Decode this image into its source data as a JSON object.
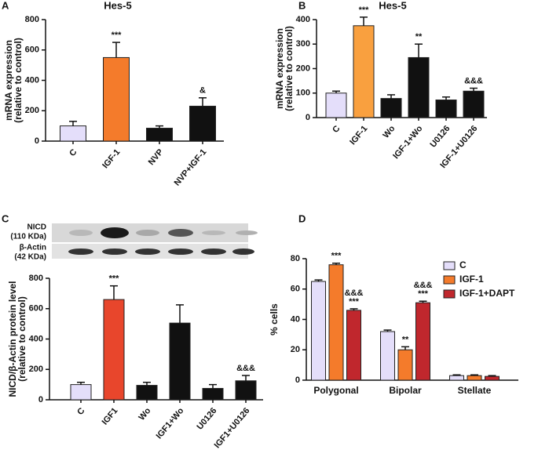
{
  "chart_data": [
    {
      "type": "bar",
      "panel": "A",
      "title": "Hes-5",
      "ylabel": [
        "mRNA expression",
        "(relative to control)"
      ],
      "categories": [
        "C",
        "IGF-1",
        "NVP",
        "NVP+IGF-1"
      ],
      "values": [
        100,
        550,
        85,
        230
      ],
      "errors": [
        30,
        100,
        15,
        55
      ],
      "annotations": [
        null,
        "***",
        null,
        "&"
      ],
      "colors": [
        "#e4defa",
        "#f47b2b",
        "#111111",
        "#111111"
      ],
      "ylim": [
        0,
        800
      ],
      "yticks": [
        0,
        200,
        400,
        600,
        800
      ]
    },
    {
      "type": "bar",
      "panel": "B",
      "title": "Hes-5",
      "ylabel": [
        "mRNA expression",
        "(relative to control)"
      ],
      "categories": [
        "C",
        "IGF-1",
        "Wo",
        "IGF-1+Wo",
        "U0126",
        "IGF-1+U0126"
      ],
      "values": [
        100,
        375,
        78,
        245,
        72,
        108
      ],
      "errors": [
        8,
        35,
        15,
        55,
        12,
        12
      ],
      "annotations": [
        null,
        "***",
        null,
        "**",
        null,
        "&&&"
      ],
      "colors": [
        "#e4defa",
        "#f9a03f",
        "#111111",
        "#111111",
        "#111111",
        "#111111"
      ],
      "ylim": [
        0,
        400
      ],
      "yticks": [
        0,
        100,
        200,
        300,
        400
      ]
    },
    {
      "type": "bar",
      "panel": "C",
      "blot_labels": [
        "NICD",
        "(110 KDa)",
        "β-Actin",
        "(42 KDa)"
      ],
      "ylabel": [
        "NICD/β-Actin protein level",
        "(relative to control)"
      ],
      "categories": [
        "C",
        "IGF1",
        "Wo",
        "IGF1+Wo",
        "U0126",
        "IGF1+U0126"
      ],
      "values": [
        100,
        660,
        95,
        505,
        75,
        125
      ],
      "errors": [
        15,
        90,
        20,
        120,
        25,
        35
      ],
      "annotations": [
        null,
        "***",
        null,
        null,
        null,
        "&&&"
      ],
      "colors": [
        "#e4defa",
        "#e8462c",
        "#111111",
        "#111111",
        "#111111",
        "#111111"
      ],
      "ylim": [
        0,
        800
      ],
      "yticks": [
        0,
        200,
        400,
        600,
        800
      ]
    },
    {
      "type": "grouped_bar",
      "panel": "D",
      "ylabel": [
        "% cells"
      ],
      "categories": [
        "Polygonal",
        "Bipolar",
        "Stellate"
      ],
      "series": [
        {
          "name": "C",
          "color": "#e4defa",
          "values": [
            65,
            32,
            3
          ],
          "errors": [
            1,
            1,
            0.5
          ],
          "annotations": [
            null,
            null,
            null
          ]
        },
        {
          "name": "IGF-1",
          "color": "#f47b2b",
          "values": [
            76,
            20,
            3
          ],
          "errors": [
            1,
            2,
            0.5
          ],
          "annotations": [
            [
              "***"
            ],
            [
              "**"
            ],
            null
          ]
        },
        {
          "name": "IGF-1+DAPT",
          "color": "#c0272d",
          "values": [
            46,
            51,
            2.5
          ],
          "errors": [
            1,
            1,
            0.5
          ],
          "annotations": [
            [
              "&&&",
              "***"
            ],
            [
              "&&&",
              "***"
            ],
            null
          ]
        }
      ],
      "ylim": [
        0,
        80
      ],
      "yticks": [
        0,
        20,
        40,
        60,
        80
      ],
      "legend": "upper right"
    }
  ]
}
